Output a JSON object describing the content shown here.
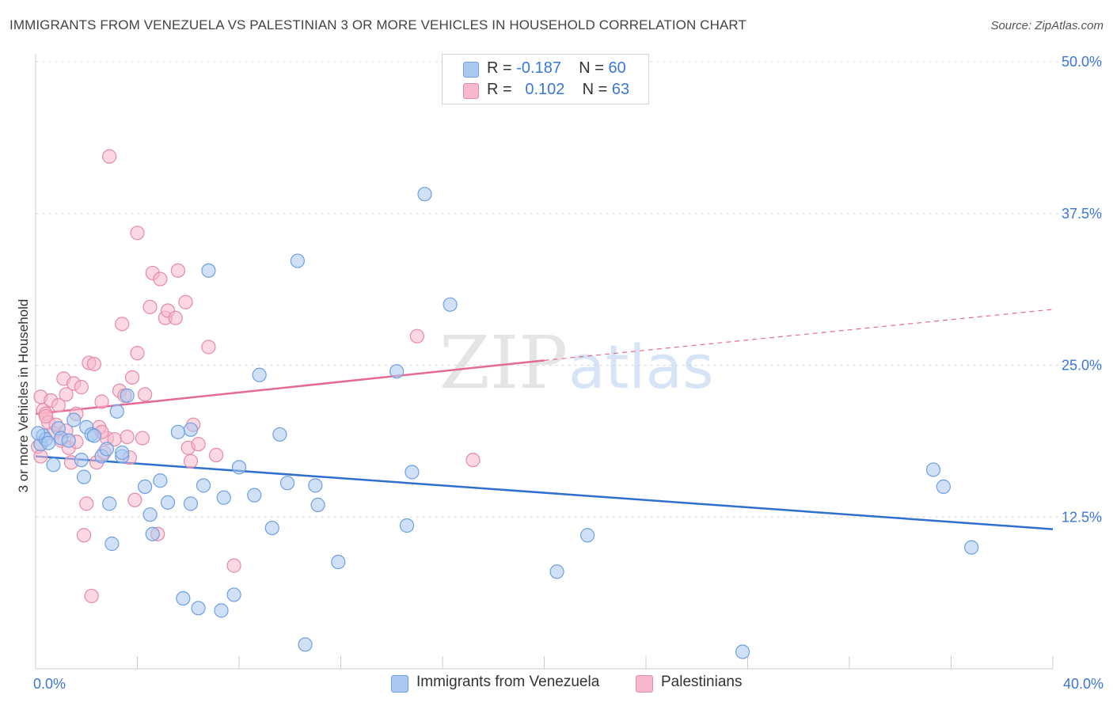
{
  "title": "IMMIGRANTS FROM VENEZUELA VS PALESTINIAN 3 OR MORE VEHICLES IN HOUSEHOLD CORRELATION CHART",
  "source": "Source: ZipAtlas.com",
  "watermark": {
    "zip": "ZIP",
    "atlas": "atlas"
  },
  "colors": {
    "blue_fill": "#aac8f0",
    "blue_stroke": "#6e9fe0",
    "blue_line": "#2f6fd0",
    "pink_fill": "#f7b8cb",
    "pink_stroke": "#e58aa8",
    "pink_line": "#e46a93",
    "tick_label": "#3a77d9",
    "grid": "#dddddd"
  },
  "legend": {
    "rows": [
      {
        "r_label": "R = ",
        "r_value": "-0.187",
        "n_label": "N = ",
        "n_value": "60"
      },
      {
        "r_label": "R = ",
        "r_value": "0.102",
        "n_label": "N = ",
        "n_value": "63"
      }
    ]
  },
  "chart_data": {
    "type": "scatter",
    "title": "IMMIGRANTS FROM VENEZUELA VS PALESTINIAN 3 OR MORE VEHICLES IN HOUSEHOLD CORRELATION CHART",
    "xlabel": "",
    "ylabel": "3 or more Vehicles in Household",
    "xlim": [
      0,
      40
    ],
    "ylim": [
      0,
      50
    ],
    "x_ticks": [
      "0.0%",
      "40.0%"
    ],
    "y_ticks": [
      {
        "value": 12.5,
        "label": "12.5%"
      },
      {
        "value": 25,
        "label": "25.0%"
      },
      {
        "value": 37.5,
        "label": "37.5%"
      },
      {
        "value": 50,
        "label": "50.0%"
      }
    ],
    "grid": true,
    "legend_position": "top-center",
    "series": [
      {
        "name": "Immigrants from Venezuela",
        "color": "#aac8f0",
        "trend": {
          "x": [
            0,
            40
          ],
          "y": [
            17.5,
            11.5
          ],
          "style": "solid"
        },
        "points": [
          [
            0.2,
            18.5
          ],
          [
            0.3,
            19.2
          ],
          [
            0.4,
            18.9
          ],
          [
            0.7,
            16.8
          ],
          [
            0.9,
            19.8
          ],
          [
            1.0,
            19.0
          ],
          [
            1.3,
            18.8
          ],
          [
            1.5,
            20.5
          ],
          [
            1.8,
            17.2
          ],
          [
            1.9,
            15.8
          ],
          [
            2.0,
            19.9
          ],
          [
            2.2,
            19.3
          ],
          [
            2.3,
            19.2
          ],
          [
            2.6,
            17.5
          ],
          [
            2.8,
            18.1
          ],
          [
            2.9,
            13.6
          ],
          [
            3.0,
            10.3
          ],
          [
            3.2,
            21.2
          ],
          [
            3.4,
            17.5
          ],
          [
            3.4,
            17.8
          ],
          [
            3.6,
            22.5
          ],
          [
            4.3,
            15.0
          ],
          [
            4.5,
            12.7
          ],
          [
            4.6,
            11.1
          ],
          [
            4.9,
            15.5
          ],
          [
            5.2,
            13.7
          ],
          [
            5.6,
            19.5
          ],
          [
            5.8,
            5.8
          ],
          [
            6.1,
            13.6
          ],
          [
            6.1,
            19.7
          ],
          [
            6.4,
            5.0
          ],
          [
            6.6,
            15.1
          ],
          [
            6.8,
            32.8
          ],
          [
            7.3,
            4.8
          ],
          [
            7.4,
            14.1
          ],
          [
            7.8,
            6.1
          ],
          [
            8.0,
            16.6
          ],
          [
            8.6,
            14.3
          ],
          [
            8.8,
            24.2
          ],
          [
            9.3,
            11.6
          ],
          [
            9.6,
            19.3
          ],
          [
            9.9,
            15.3
          ],
          [
            10.3,
            33.6
          ],
          [
            10.6,
            2.0
          ],
          [
            11.0,
            15.1
          ],
          [
            11.1,
            13.5
          ],
          [
            11.9,
            8.8
          ],
          [
            14.2,
            24.5
          ],
          [
            14.6,
            11.8
          ],
          [
            14.8,
            16.2
          ],
          [
            15.3,
            39.1
          ],
          [
            16.3,
            30.0
          ],
          [
            20.5,
            8.0
          ],
          [
            21.7,
            11.0
          ],
          [
            27.8,
            1.4
          ],
          [
            35.3,
            16.4
          ],
          [
            35.7,
            15.0
          ],
          [
            36.8,
            10.0
          ],
          [
            0.1,
            19.4
          ],
          [
            0.5,
            18.6
          ]
        ]
      },
      {
        "name": "Palestinians",
        "color": "#f7b8cb",
        "trend": {
          "x": [
            0,
            20,
            40
          ],
          "y": [
            21.0,
            25.4,
            29.6
          ],
          "style": "solid-then-dashed"
        },
        "points": [
          [
            0.1,
            18.3
          ],
          [
            0.2,
            22.4
          ],
          [
            0.3,
            21.3
          ],
          [
            0.4,
            21.0
          ],
          [
            0.5,
            20.3
          ],
          [
            0.6,
            22.1
          ],
          [
            0.7,
            19.4
          ],
          [
            0.8,
            20.1
          ],
          [
            0.9,
            21.7
          ],
          [
            1.0,
            18.8
          ],
          [
            1.1,
            23.9
          ],
          [
            1.2,
            22.6
          ],
          [
            1.3,
            18.2
          ],
          [
            1.4,
            17.0
          ],
          [
            1.5,
            23.5
          ],
          [
            1.6,
            21.0
          ],
          [
            1.6,
            18.7
          ],
          [
            1.8,
            23.2
          ],
          [
            1.9,
            11.0
          ],
          [
            2.0,
            13.6
          ],
          [
            2.1,
            25.2
          ],
          [
            2.2,
            6.0
          ],
          [
            2.3,
            25.1
          ],
          [
            2.4,
            17.0
          ],
          [
            2.5,
            19.9
          ],
          [
            2.6,
            22.0
          ],
          [
            2.7,
            17.8
          ],
          [
            2.8,
            19.0
          ],
          [
            2.9,
            42.2
          ],
          [
            3.1,
            18.9
          ],
          [
            3.3,
            22.9
          ],
          [
            3.4,
            28.4
          ],
          [
            3.5,
            22.5
          ],
          [
            3.6,
            19.1
          ],
          [
            3.8,
            24.0
          ],
          [
            3.9,
            13.9
          ],
          [
            4.0,
            26.0
          ],
          [
            4.0,
            35.9
          ],
          [
            4.2,
            19.0
          ],
          [
            4.3,
            22.6
          ],
          [
            4.5,
            29.8
          ],
          [
            4.6,
            32.6
          ],
          [
            4.8,
            11.1
          ],
          [
            4.9,
            32.1
          ],
          [
            5.1,
            28.9
          ],
          [
            5.2,
            29.5
          ],
          [
            5.5,
            28.9
          ],
          [
            5.6,
            32.8
          ],
          [
            5.9,
            30.2
          ],
          [
            6.1,
            17.1
          ],
          [
            6.0,
            18.2
          ],
          [
            6.2,
            20.1
          ],
          [
            6.4,
            18.5
          ],
          [
            6.8,
            26.5
          ],
          [
            7.1,
            17.6
          ],
          [
            7.8,
            8.5
          ],
          [
            15.0,
            27.4
          ],
          [
            17.2,
            17.2
          ],
          [
            0.2,
            17.5
          ],
          [
            0.4,
            20.8
          ],
          [
            1.2,
            19.6
          ],
          [
            2.6,
            19.5
          ],
          [
            3.7,
            17.4
          ]
        ]
      }
    ],
    "bottom_legend": [
      "Immigrants from Venezuela",
      "Palestinians"
    ]
  }
}
